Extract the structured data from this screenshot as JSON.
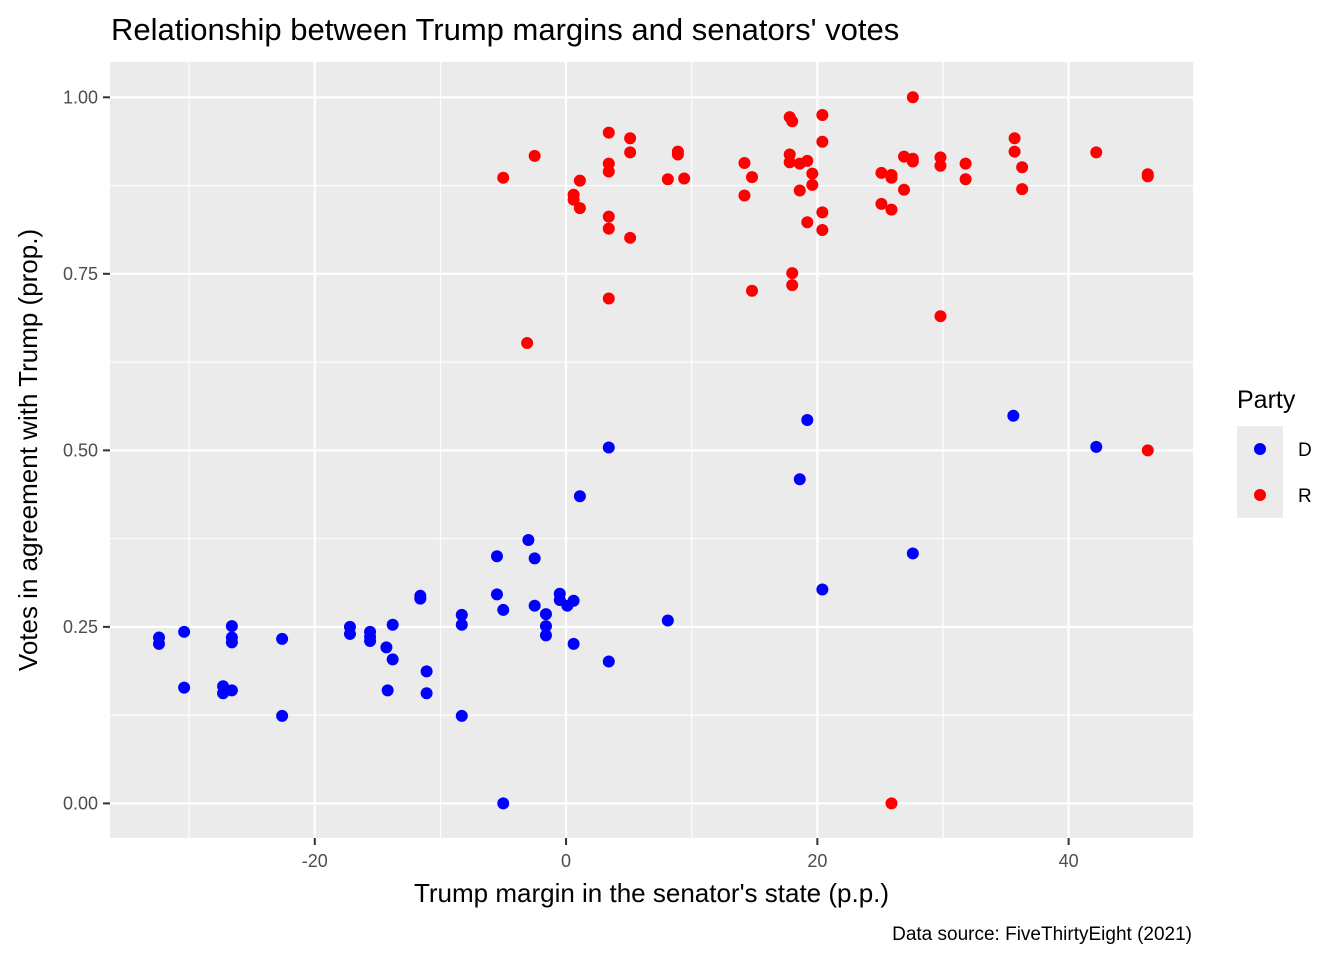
{
  "chart_data": {
    "type": "scatter",
    "title": "Relationship between Trump margins and senators' votes",
    "xlabel": "Trump margin in the senator's state (p.p.)",
    "ylabel": "Votes in agreement with Trump (prop.)",
    "caption": "Data source: FiveThirtyEight (2021)",
    "xlim": [
      -36.3,
      49.9
    ],
    "ylim": [
      -0.049,
      1.05
    ],
    "x_ticks": [
      -20,
      0,
      20,
      40
    ],
    "x_tick_labels": [
      "-20",
      "0",
      "20",
      "40"
    ],
    "y_ticks": [
      0,
      0.25,
      0.5,
      0.75,
      1.0
    ],
    "y_tick_labels": [
      "0.00",
      "0.25",
      "0.50",
      "0.75",
      "1.00"
    ],
    "grid": true,
    "legend": {
      "title": "Party",
      "position": "right",
      "entries": [
        {
          "label": "D",
          "color": "#0000ff"
        },
        {
          "label": "R",
          "color": "#ff0000"
        }
      ]
    },
    "series": [
      {
        "name": "D",
        "color": "#0000ff",
        "points": [
          [
            -32.4,
            0.235
          ],
          [
            -32.4,
            0.226
          ],
          [
            -30.4,
            0.243
          ],
          [
            -30.4,
            0.164
          ],
          [
            -27.3,
            0.166
          ],
          [
            -27.3,
            0.156
          ],
          [
            -26.6,
            0.16
          ],
          [
            -26.6,
            0.251
          ],
          [
            -26.6,
            0.235
          ],
          [
            -26.6,
            0.228
          ],
          [
            -22.6,
            0.233
          ],
          [
            -22.6,
            0.124
          ],
          [
            -17.2,
            0.25
          ],
          [
            -17.2,
            0.24
          ],
          [
            -15.6,
            0.243
          ],
          [
            -15.6,
            0.236
          ],
          [
            -15.6,
            0.23
          ],
          [
            -14.3,
            0.221
          ],
          [
            -14.2,
            0.16
          ],
          [
            -13.8,
            0.253
          ],
          [
            -13.8,
            0.204
          ],
          [
            -11.6,
            0.294
          ],
          [
            -11.6,
            0.29
          ],
          [
            -11.1,
            0.187
          ],
          [
            -11.1,
            0.156
          ],
          [
            -8.3,
            0.267
          ],
          [
            -8.3,
            0.253
          ],
          [
            -8.3,
            0.124
          ],
          [
            -5.5,
            0.35
          ],
          [
            -5.5,
            0.296
          ],
          [
            -5.0,
            0.274
          ],
          [
            -5.0,
            0.0
          ],
          [
            -3.0,
            0.373
          ],
          [
            -2.5,
            0.347
          ],
          [
            -2.5,
            0.28
          ],
          [
            -1.6,
            0.268
          ],
          [
            -1.6,
            0.251
          ],
          [
            -1.6,
            0.238
          ],
          [
            -0.5,
            0.297
          ],
          [
            -0.5,
            0.288
          ],
          [
            0.1,
            0.28
          ],
          [
            0.6,
            0.287
          ],
          [
            0.6,
            0.226
          ],
          [
            1.1,
            0.435
          ],
          [
            3.4,
            0.504
          ],
          [
            3.4,
            0.201
          ],
          [
            8.1,
            0.259
          ],
          [
            18.6,
            0.459
          ],
          [
            19.2,
            0.543
          ],
          [
            20.4,
            0.303
          ],
          [
            27.6,
            0.354
          ],
          [
            35.6,
            0.549
          ],
          [
            42.2,
            0.505
          ]
        ]
      },
      {
        "name": "R",
        "color": "#ff0000",
        "points": [
          [
            -5.0,
            0.886
          ],
          [
            -2.5,
            0.917
          ],
          [
            -3.1,
            0.652
          ],
          [
            0.6,
            0.862
          ],
          [
            0.6,
            0.855
          ],
          [
            1.1,
            0.882
          ],
          [
            1.1,
            0.843
          ],
          [
            3.4,
            0.95
          ],
          [
            3.4,
            0.906
          ],
          [
            3.4,
            0.895
          ],
          [
            3.4,
            0.831
          ],
          [
            3.4,
            0.814
          ],
          [
            3.4,
            0.715
          ],
          [
            5.1,
            0.942
          ],
          [
            5.1,
            0.922
          ],
          [
            5.1,
            0.801
          ],
          [
            8.1,
            0.884
          ],
          [
            8.9,
            0.923
          ],
          [
            8.9,
            0.919
          ],
          [
            9.4,
            0.885
          ],
          [
            14.2,
            0.907
          ],
          [
            14.2,
            0.861
          ],
          [
            14.8,
            0.887
          ],
          [
            14.8,
            0.726
          ],
          [
            17.8,
            0.972
          ],
          [
            18.0,
            0.966
          ],
          [
            17.8,
            0.919
          ],
          [
            17.8,
            0.908
          ],
          [
            18.6,
            0.906
          ],
          [
            18.0,
            0.751
          ],
          [
            18.0,
            0.734
          ],
          [
            19.2,
            0.91
          ],
          [
            19.6,
            0.892
          ],
          [
            19.6,
            0.876
          ],
          [
            18.6,
            0.868
          ],
          [
            19.2,
            0.823
          ],
          [
            20.4,
            0.975
          ],
          [
            20.4,
            0.937
          ],
          [
            20.4,
            0.837
          ],
          [
            20.4,
            0.812
          ],
          [
            25.1,
            0.893
          ],
          [
            25.1,
            0.849
          ],
          [
            25.9,
            0.89
          ],
          [
            25.9,
            0.886
          ],
          [
            25.9,
            0.841
          ],
          [
            25.9,
            0.0
          ],
          [
            26.9,
            0.916
          ],
          [
            26.9,
            0.869
          ],
          [
            27.6,
            1.0
          ],
          [
            27.6,
            0.913
          ],
          [
            27.6,
            0.909
          ],
          [
            29.8,
            0.915
          ],
          [
            29.8,
            0.903
          ],
          [
            29.8,
            0.69
          ],
          [
            31.8,
            0.906
          ],
          [
            31.8,
            0.884
          ],
          [
            35.7,
            0.942
          ],
          [
            35.7,
            0.923
          ],
          [
            36.3,
            0.901
          ],
          [
            36.3,
            0.87
          ],
          [
            42.2,
            0.922
          ],
          [
            46.3,
            0.891
          ],
          [
            46.3,
            0.888
          ],
          [
            46.3,
            0.5
          ]
        ]
      }
    ]
  }
}
